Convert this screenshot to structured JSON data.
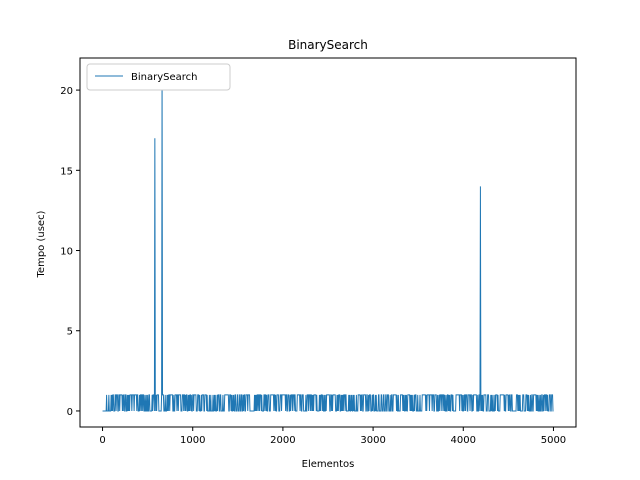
{
  "chart_data": {
    "type": "line",
    "title": "BinarySearch",
    "xlabel": "Elementos",
    "ylabel": "Tempo (usec)",
    "xlim": [
      -250,
      5250
    ],
    "ylim": [
      -1,
      22
    ],
    "xticks": [
      0,
      1000,
      2000,
      3000,
      4000,
      5000
    ],
    "yticks": [
      0,
      5,
      10,
      15,
      20
    ],
    "grid": false,
    "legend_position": "upper-left",
    "series_color": "#1f77b4",
    "series": [
      {
        "name": "BinarySearch",
        "x_range": [
          0,
          5000
        ],
        "baseline": 0,
        "typical_spike": 1,
        "dense_start": 40,
        "spikes": [
          {
            "x": 580,
            "y": 17
          },
          {
            "x": 660,
            "y": 21
          },
          {
            "x": 4190,
            "y": 14
          }
        ]
      }
    ]
  }
}
